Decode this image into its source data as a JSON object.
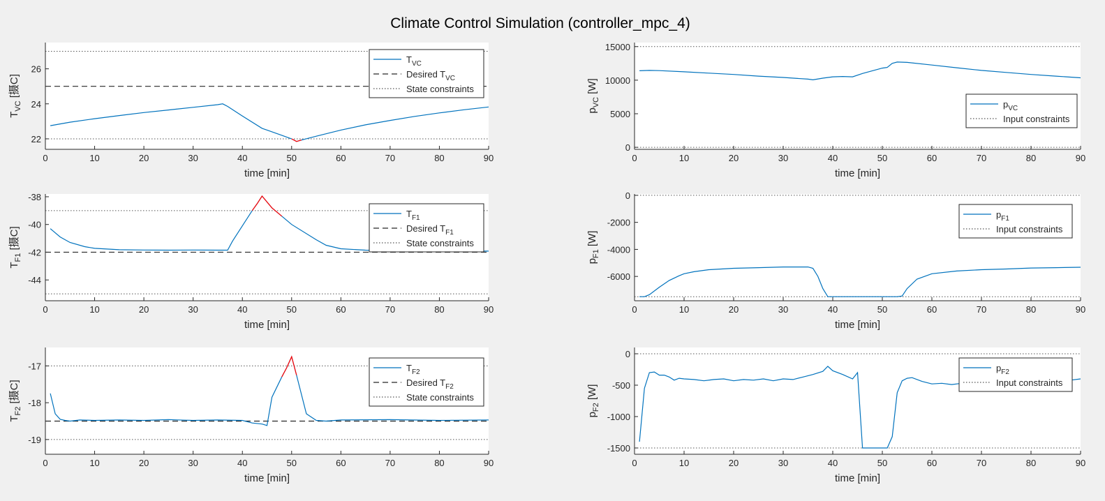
{
  "figure": {
    "title": "Climate Control Simulation (controller_mpc_4)",
    "colors": {
      "series": "#0072BD",
      "violation": "#FF0000",
      "reference": "#262626",
      "constraint": "#555555"
    }
  },
  "chart_data": [
    {
      "type": "line",
      "ylabel_main": "T",
      "ylabel_sub": "VC",
      "ylabel_unit": " [摄C]",
      "xlabel": "time [min]",
      "xlim": [
        0,
        90
      ],
      "ylim": [
        21.4,
        27.5
      ],
      "xticks": [
        0,
        10,
        20,
        30,
        40,
        50,
        60,
        70,
        80,
        90
      ],
      "yticks": [
        22,
        24,
        26
      ],
      "legend": [
        {
          "main": "T",
          "sub": "VC",
          "style": "solid"
        },
        {
          "main": "Desired T",
          "sub": "VC",
          "style": "dashed"
        },
        {
          "main": "State constraints",
          "sub": "",
          "style": "dotted"
        }
      ],
      "series": [
        {
          "x": [
            1,
            5,
            10,
            15,
            20,
            25,
            30,
            35,
            36,
            37,
            40,
            44,
            48,
            50,
            51,
            52,
            55,
            60,
            65,
            70,
            75,
            80,
            85,
            90
          ],
          "y": [
            22.75,
            22.95,
            23.15,
            23.33,
            23.5,
            23.65,
            23.8,
            23.95,
            24.0,
            23.85,
            23.3,
            22.6,
            22.2,
            22.0,
            21.85,
            21.93,
            22.15,
            22.5,
            22.8,
            23.05,
            23.28,
            23.48,
            23.66,
            23.82
          ]
        }
      ],
      "violations": [
        {
          "x": [
            50,
            51,
            52
          ],
          "y": [
            22.0,
            21.85,
            21.93
          ]
        }
      ],
      "reference": 25,
      "constraints": [
        22,
        27
      ]
    },
    {
      "type": "line",
      "ylabel_main": "p",
      "ylabel_sub": "VC",
      "ylabel_unit": " [W]",
      "xlabel": "time [min]",
      "xlim": [
        0,
        90
      ],
      "ylim": [
        -300,
        15600
      ],
      "xticks": [
        0,
        10,
        20,
        30,
        40,
        50,
        60,
        70,
        80,
        90
      ],
      "yticks": [
        0,
        5000,
        10000,
        15000
      ],
      "legend": [
        {
          "main": "p",
          "sub": "VC",
          "style": "solid"
        },
        {
          "main": "Input constraints",
          "sub": "",
          "style": "dotted"
        }
      ],
      "series": [
        {
          "x": [
            1,
            3,
            5,
            10,
            15,
            20,
            25,
            30,
            35,
            36,
            38,
            40,
            42,
            44,
            46,
            48,
            50,
            51,
            52,
            53,
            55,
            60,
            65,
            70,
            75,
            80,
            85,
            90
          ],
          "y": [
            11400,
            11450,
            11420,
            11250,
            11050,
            10850,
            10600,
            10400,
            10150,
            10050,
            10300,
            10500,
            10550,
            10500,
            11000,
            11400,
            11800,
            11900,
            12500,
            12700,
            12650,
            12250,
            11850,
            11450,
            11150,
            10850,
            10600,
            10350
          ]
        }
      ],
      "violations": [],
      "constraints": [
        0,
        15000
      ]
    },
    {
      "type": "line",
      "ylabel_main": "T",
      "ylabel_sub": "F1",
      "ylabel_unit": " [摄C]",
      "xlabel": "time [min]",
      "xlim": [
        0,
        90
      ],
      "ylim": [
        -45.5,
        -37.8
      ],
      "xticks": [
        0,
        10,
        20,
        30,
        40,
        50,
        60,
        70,
        80,
        90
      ],
      "yticks": [
        -44,
        -42,
        -40,
        -38
      ],
      "legend": [
        {
          "main": "T",
          "sub": "F1",
          "style": "solid"
        },
        {
          "main": "Desired T",
          "sub": "F1",
          "style": "dashed"
        },
        {
          "main": "State constraints",
          "sub": "",
          "style": "dotted"
        }
      ],
      "series": [
        {
          "x": [
            1,
            3,
            5,
            8,
            10,
            15,
            20,
            25,
            30,
            35,
            37,
            38,
            40,
            42,
            43,
            44,
            46,
            50,
            55,
            57,
            60,
            65,
            70,
            80,
            90
          ],
          "y": [
            -40.3,
            -40.9,
            -41.3,
            -41.6,
            -41.72,
            -41.82,
            -41.84,
            -41.85,
            -41.84,
            -41.85,
            -41.85,
            -41.2,
            -40.1,
            -39.0,
            -38.5,
            -37.95,
            -38.8,
            -40.0,
            -41.1,
            -41.5,
            -41.75,
            -41.85,
            -41.88,
            -41.9,
            -41.92
          ]
        }
      ],
      "violations": [
        {
          "x": [
            42,
            43,
            44,
            46,
            48
          ],
          "y": [
            -39.0,
            -38.5,
            -37.95,
            -38.8,
            -39.4
          ]
        }
      ],
      "reference": -42,
      "constraints": [
        -45,
        -39
      ]
    },
    {
      "type": "line",
      "ylabel_main": "p",
      "ylabel_sub": "F1",
      "ylabel_unit": " [W]",
      "xlabel": "time [min]",
      "xlim": [
        0,
        90
      ],
      "ylim": [
        -7800,
        100
      ],
      "xticks": [
        0,
        10,
        20,
        30,
        40,
        50,
        60,
        70,
        80,
        90
      ],
      "yticks": [
        -6000,
        -4000,
        -2000,
        0
      ],
      "legend": [
        {
          "main": "p",
          "sub": "F1",
          "style": "solid"
        },
        {
          "main": "Input constraints",
          "sub": "",
          "style": "dotted"
        }
      ],
      "series": [
        {
          "x": [
            1,
            2,
            3,
            5,
            7,
            9,
            10,
            12,
            15,
            20,
            25,
            30,
            35,
            36,
            37,
            38,
            39,
            40,
            45,
            50,
            53,
            54,
            55,
            57,
            60,
            65,
            70,
            75,
            80,
            85,
            90
          ],
          "y": [
            -7500,
            -7500,
            -7350,
            -6800,
            -6300,
            -5950,
            -5800,
            -5650,
            -5500,
            -5400,
            -5350,
            -5300,
            -5300,
            -5400,
            -6000,
            -6900,
            -7500,
            -7500,
            -7500,
            -7500,
            -7500,
            -7450,
            -6900,
            -6200,
            -5800,
            -5600,
            -5500,
            -5450,
            -5380,
            -5350,
            -5320
          ]
        }
      ],
      "violations": [],
      "constraints": [
        -7500,
        0
      ]
    },
    {
      "type": "line",
      "ylabel_main": "T",
      "ylabel_sub": "F2",
      "ylabel_unit": " [摄C]",
      "xlabel": "time [min]",
      "xlim": [
        0,
        90
      ],
      "ylim": [
        -19.4,
        -16.5
      ],
      "xticks": [
        0,
        10,
        20,
        30,
        40,
        50,
        60,
        70,
        80,
        90
      ],
      "yticks": [
        -19,
        -18,
        -17
      ],
      "legend": [
        {
          "main": "T",
          "sub": "F2",
          "style": "solid"
        },
        {
          "main": "Desired T",
          "sub": "F2",
          "style": "dashed"
        },
        {
          "main": "State constraints",
          "sub": "",
          "style": "dotted"
        }
      ],
      "series": [
        {
          "x": [
            1,
            2,
            3,
            4,
            5,
            7,
            10,
            15,
            20,
            25,
            30,
            35,
            40,
            42,
            44,
            45,
            46,
            48,
            49,
            50,
            51,
            53,
            55,
            57,
            60,
            70,
            80,
            90
          ],
          "y": [
            -17.75,
            -18.3,
            -18.45,
            -18.48,
            -18.5,
            -18.47,
            -18.48,
            -18.47,
            -18.48,
            -18.46,
            -18.48,
            -18.47,
            -18.48,
            -18.55,
            -18.58,
            -18.62,
            -17.85,
            -17.3,
            -17.05,
            -16.75,
            -17.25,
            -18.3,
            -18.48,
            -18.5,
            -18.47,
            -18.46,
            -18.48,
            -18.47
          ]
        }
      ],
      "violations": [
        {
          "x": [
            48,
            49,
            50,
            51
          ],
          "y": [
            -17.3,
            -17.05,
            -16.75,
            -17.25
          ]
        }
      ],
      "reference": -18.5,
      "constraints": [
        -19,
        -17
      ]
    },
    {
      "type": "line",
      "ylabel_main": "p",
      "ylabel_sub": "F2",
      "ylabel_unit": " [W]",
      "xlabel": "time [min]",
      "xlim": [
        0,
        90
      ],
      "ylim": [
        -1600,
        100
      ],
      "xticks": [
        0,
        10,
        20,
        30,
        40,
        50,
        60,
        70,
        80,
        90
      ],
      "yticks": [
        -1500,
        -1000,
        -500,
        0
      ],
      "legend": [
        {
          "main": "p",
          "sub": "F2",
          "style": "solid"
        },
        {
          "main": "Input constraints",
          "sub": "",
          "style": "dotted"
        }
      ],
      "series": [
        {
          "x": [
            1,
            2,
            3,
            4,
            5,
            6,
            7,
            8,
            9,
            10,
            12,
            14,
            16,
            18,
            20,
            22,
            24,
            26,
            28,
            30,
            32,
            34,
            36,
            38,
            39,
            40,
            42,
            44,
            45,
            46,
            47,
            48,
            50,
            51,
            52,
            53,
            54,
            55,
            56,
            58,
            60,
            62,
            64,
            66,
            68,
            70,
            72,
            74,
            76,
            78,
            80,
            82,
            84,
            86,
            88,
            90
          ],
          "y": [
            -1400,
            -550,
            -300,
            -290,
            -340,
            -340,
            -370,
            -420,
            -390,
            -400,
            -410,
            -430,
            -410,
            -400,
            -430,
            -410,
            -420,
            -400,
            -430,
            -400,
            -410,
            -370,
            -330,
            -280,
            -200,
            -270,
            -330,
            -400,
            -300,
            -1500,
            -1500,
            -1500,
            -1500,
            -1500,
            -1320,
            -620,
            -430,
            -390,
            -380,
            -440,
            -480,
            -470,
            -490,
            -470,
            -480,
            -460,
            -470,
            -480,
            -470,
            -460,
            -470,
            -460,
            -470,
            -450,
            -420,
            -400
          ]
        }
      ],
      "violations": [],
      "constraints": [
        -1500,
        0
      ]
    }
  ]
}
